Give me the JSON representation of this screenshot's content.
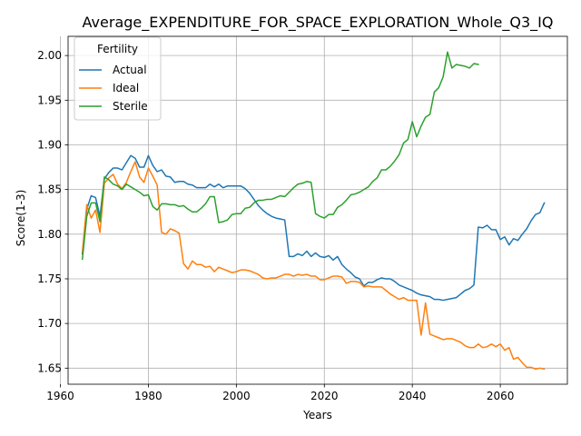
{
  "chart_data": {
    "type": "line",
    "title": "Average_EXPENDITURE_FOR_SPACE_EXPLORATION_Whole_Q3_IQ",
    "xlabel": "Years",
    "ylabel": "Score(1-3)",
    "xlim": [
      1961.75,
      2075.25
    ],
    "ylim": [
      1.632,
      2.0215
    ],
    "xticks": [
      1960,
      1980,
      2000,
      2020,
      2040,
      2060
    ],
    "yticks": [
      1.65,
      1.7,
      1.75,
      1.8,
      1.85,
      1.9,
      1.95,
      2.0
    ],
    "ytick_labels": [
      "1.65",
      "1.70",
      "1.75",
      "1.80",
      "1.85",
      "1.90",
      "1.95",
      "2.00"
    ],
    "grid": true,
    "legend": {
      "title": "Fertility",
      "location": "upper-left"
    },
    "series": [
      {
        "name": "Actual",
        "color": "#1f77b4",
        "points": [
          [
            1965,
            1.778
          ],
          [
            1966,
            1.828
          ],
          [
            1967,
            1.843
          ],
          [
            1968,
            1.841
          ],
          [
            1969,
            1.82
          ],
          [
            1970,
            1.862
          ],
          [
            1971,
            1.869
          ],
          [
            1972,
            1.874
          ],
          [
            1973,
            1.874
          ],
          [
            1974,
            1.872
          ],
          [
            1975,
            1.88
          ],
          [
            1976,
            1.888
          ],
          [
            1977,
            1.885
          ],
          [
            1978,
            1.875
          ],
          [
            1979,
            1.875
          ],
          [
            1980,
            1.888
          ],
          [
            1981,
            1.877
          ],
          [
            1982,
            1.87
          ],
          [
            1983,
            1.872
          ],
          [
            1984,
            1.865
          ],
          [
            1985,
            1.864
          ],
          [
            1986,
            1.858
          ],
          [
            1987,
            1.859
          ],
          [
            1988,
            1.859
          ],
          [
            1989,
            1.856
          ],
          [
            1990,
            1.855
          ],
          [
            1991,
            1.852
          ],
          [
            1992,
            1.852
          ],
          [
            1993,
            1.852
          ],
          [
            1994,
            1.856
          ],
          [
            1995,
            1.853
          ],
          [
            1996,
            1.856
          ],
          [
            1997,
            1.852
          ],
          [
            1998,
            1.854
          ],
          [
            1999,
            1.854
          ],
          [
            2000,
            1.854
          ],
          [
            2001,
            1.854
          ],
          [
            2002,
            1.851
          ],
          [
            2003,
            1.846
          ],
          [
            2004,
            1.839
          ],
          [
            2005,
            1.832
          ],
          [
            2006,
            1.827
          ],
          [
            2007,
            1.823
          ],
          [
            2008,
            1.82
          ],
          [
            2009,
            1.818
          ],
          [
            2010,
            1.817
          ],
          [
            2011,
            1.816
          ],
          [
            2012,
            1.775
          ],
          [
            2013,
            1.775
          ],
          [
            2014,
            1.778
          ],
          [
            2015,
            1.776
          ],
          [
            2016,
            1.781
          ],
          [
            2017,
            1.775
          ],
          [
            2018,
            1.779
          ],
          [
            2019,
            1.775
          ],
          [
            2020,
            1.774
          ],
          [
            2021,
            1.776
          ],
          [
            2022,
            1.771
          ],
          [
            2023,
            1.775
          ],
          [
            2024,
            1.766
          ],
          [
            2025,
            1.761
          ],
          [
            2026,
            1.757
          ],
          [
            2027,
            1.752
          ],
          [
            2028,
            1.75
          ],
          [
            2029,
            1.742
          ],
          [
            2030,
            1.746
          ],
          [
            2031,
            1.746
          ],
          [
            2032,
            1.749
          ],
          [
            2033,
            1.751
          ],
          [
            2034,
            1.75
          ],
          [
            2035,
            1.75
          ],
          [
            2036,
            1.747
          ],
          [
            2037,
            1.743
          ],
          [
            2038,
            1.741
          ],
          [
            2039,
            1.739
          ],
          [
            2040,
            1.737
          ],
          [
            2041,
            1.734
          ],
          [
            2042,
            1.732
          ],
          [
            2043,
            1.731
          ],
          [
            2044,
            1.73
          ],
          [
            2045,
            1.727
          ],
          [
            2046,
            1.727
          ],
          [
            2047,
            1.726
          ],
          [
            2048,
            1.727
          ],
          [
            2049,
            1.728
          ],
          [
            2050,
            1.729
          ],
          [
            2051,
            1.733
          ],
          [
            2052,
            1.737
          ],
          [
            2053,
            1.739
          ],
          [
            2054,
            1.743
          ],
          [
            2055,
            1.808
          ],
          [
            2056,
            1.807
          ],
          [
            2057,
            1.81
          ],
          [
            2058,
            1.805
          ],
          [
            2059,
            1.805
          ],
          [
            2060,
            1.794
          ],
          [
            2061,
            1.797
          ],
          [
            2062,
            1.788
          ],
          [
            2063,
            1.795
          ],
          [
            2064,
            1.793
          ],
          [
            2065,
            1.8
          ],
          [
            2066,
            1.806
          ],
          [
            2067,
            1.815
          ],
          [
            2068,
            1.822
          ],
          [
            2069,
            1.824
          ],
          [
            2070,
            1.835
          ]
        ]
      },
      {
        "name": "Ideal",
        "color": "#ff7f0e",
        "points": [
          [
            1965,
            1.78
          ],
          [
            1966,
            1.833
          ],
          [
            1967,
            1.818
          ],
          [
            1968,
            1.827
          ],
          [
            1969,
            1.802
          ],
          [
            1970,
            1.857
          ],
          [
            1971,
            1.863
          ],
          [
            1972,
            1.867
          ],
          [
            1973,
            1.856
          ],
          [
            1974,
            1.851
          ],
          [
            1975,
            1.858
          ],
          [
            1976,
            1.87
          ],
          [
            1977,
            1.881
          ],
          [
            1978,
            1.864
          ],
          [
            1979,
            1.858
          ],
          [
            1980,
            1.874
          ],
          [
            1981,
            1.865
          ],
          [
            1982,
            1.855
          ],
          [
            1983,
            1.802
          ],
          [
            1984,
            1.8
          ],
          [
            1985,
            1.806
          ],
          [
            1986,
            1.804
          ],
          [
            1987,
            1.801
          ],
          [
            1988,
            1.767
          ],
          [
            1989,
            1.761
          ],
          [
            1990,
            1.77
          ],
          [
            1991,
            1.766
          ],
          [
            1992,
            1.766
          ],
          [
            1993,
            1.763
          ],
          [
            1994,
            1.764
          ],
          [
            1995,
            1.758
          ],
          [
            1996,
            1.763
          ],
          [
            1997,
            1.761
          ],
          [
            1998,
            1.759
          ],
          [
            1999,
            1.757
          ],
          [
            2000,
            1.758
          ],
          [
            2001,
            1.76
          ],
          [
            2002,
            1.76
          ],
          [
            2003,
            1.759
          ],
          [
            2004,
            1.757
          ],
          [
            2005,
            1.755
          ],
          [
            2006,
            1.751
          ],
          [
            2007,
            1.75
          ],
          [
            2008,
            1.751
          ],
          [
            2009,
            1.751
          ],
          [
            2010,
            1.753
          ],
          [
            2011,
            1.755
          ],
          [
            2012,
            1.755
          ],
          [
            2013,
            1.753
          ],
          [
            2014,
            1.755
          ],
          [
            2015,
            1.754
          ],
          [
            2016,
            1.755
          ],
          [
            2017,
            1.753
          ],
          [
            2018,
            1.753
          ],
          [
            2019,
            1.749
          ],
          [
            2020,
            1.749
          ],
          [
            2021,
            1.751
          ],
          [
            2022,
            1.753
          ],
          [
            2023,
            1.753
          ],
          [
            2024,
            1.752
          ],
          [
            2025,
            1.745
          ],
          [
            2026,
            1.747
          ],
          [
            2027,
            1.747
          ],
          [
            2028,
            1.746
          ],
          [
            2029,
            1.741
          ],
          [
            2030,
            1.742
          ],
          [
            2031,
            1.741
          ],
          [
            2032,
            1.741
          ],
          [
            2033,
            1.741
          ],
          [
            2034,
            1.737
          ],
          [
            2035,
            1.733
          ],
          [
            2036,
            1.73
          ],
          [
            2037,
            1.727
          ],
          [
            2038,
            1.729
          ],
          [
            2039,
            1.726
          ],
          [
            2040,
            1.726
          ],
          [
            2041,
            1.726
          ],
          [
            2042,
            1.687
          ],
          [
            2043,
            1.723
          ],
          [
            2044,
            1.688
          ],
          [
            2045,
            1.686
          ],
          [
            2046,
            1.684
          ],
          [
            2047,
            1.682
          ],
          [
            2048,
            1.683
          ],
          [
            2049,
            1.683
          ],
          [
            2050,
            1.681
          ],
          [
            2051,
            1.679
          ],
          [
            2052,
            1.675
          ],
          [
            2053,
            1.673
          ],
          [
            2054,
            1.673
          ],
          [
            2055,
            1.677
          ],
          [
            2056,
            1.673
          ],
          [
            2057,
            1.674
          ],
          [
            2058,
            1.677
          ],
          [
            2059,
            1.674
          ],
          [
            2060,
            1.677
          ],
          [
            2061,
            1.67
          ],
          [
            2062,
            1.673
          ],
          [
            2063,
            1.66
          ],
          [
            2064,
            1.662
          ],
          [
            2065,
            1.656
          ],
          [
            2066,
            1.651
          ],
          [
            2067,
            1.651
          ],
          [
            2068,
            1.649
          ],
          [
            2069,
            1.65
          ],
          [
            2070,
            1.649
          ]
        ]
      },
      {
        "name": "Sterile",
        "color": "#2ca02c",
        "points": [
          [
            1965,
            1.772
          ],
          [
            1966,
            1.82
          ],
          [
            1967,
            1.835
          ],
          [
            1968,
            1.835
          ],
          [
            1969,
            1.814
          ],
          [
            1970,
            1.864
          ],
          [
            1971,
            1.861
          ],
          [
            1972,
            1.856
          ],
          [
            1973,
            1.854
          ],
          [
            1974,
            1.85
          ],
          [
            1975,
            1.856
          ],
          [
            1976,
            1.853
          ],
          [
            1977,
            1.85
          ],
          [
            1978,
            1.847
          ],
          [
            1979,
            1.843
          ],
          [
            1980,
            1.844
          ],
          [
            1981,
            1.831
          ],
          [
            1982,
            1.827
          ],
          [
            1983,
            1.834
          ],
          [
            1984,
            1.834
          ],
          [
            1985,
            1.833
          ],
          [
            1986,
            1.833
          ],
          [
            1987,
            1.831
          ],
          [
            1988,
            1.832
          ],
          [
            1989,
            1.828
          ],
          [
            1990,
            1.825
          ],
          [
            1991,
            1.825
          ],
          [
            1992,
            1.829
          ],
          [
            1993,
            1.834
          ],
          [
            1994,
            1.842
          ],
          [
            1995,
            1.842
          ],
          [
            1996,
            1.813
          ],
          [
            1997,
            1.814
          ],
          [
            1998,
            1.816
          ],
          [
            1999,
            1.822
          ],
          [
            2000,
            1.823
          ],
          [
            2001,
            1.823
          ],
          [
            2002,
            1.829
          ],
          [
            2003,
            1.83
          ],
          [
            2004,
            1.835
          ],
          [
            2005,
            1.838
          ],
          [
            2006,
            1.838
          ],
          [
            2007,
            1.839
          ],
          [
            2008,
            1.839
          ],
          [
            2009,
            1.841
          ],
          [
            2010,
            1.843
          ],
          [
            2011,
            1.842
          ],
          [
            2012,
            1.847
          ],
          [
            2013,
            1.852
          ],
          [
            2014,
            1.856
          ],
          [
            2015,
            1.857
          ],
          [
            2016,
            1.859
          ],
          [
            2017,
            1.858
          ],
          [
            2018,
            1.823
          ],
          [
            2019,
            1.82
          ],
          [
            2020,
            1.818
          ],
          [
            2021,
            1.822
          ],
          [
            2022,
            1.822
          ],
          [
            2023,
            1.83
          ],
          [
            2024,
            1.833
          ],
          [
            2025,
            1.838
          ],
          [
            2026,
            1.844
          ],
          [
            2027,
            1.845
          ],
          [
            2028,
            1.847
          ],
          [
            2029,
            1.85
          ],
          [
            2030,
            1.853
          ],
          [
            2031,
            1.859
          ],
          [
            2032,
            1.863
          ],
          [
            2033,
            1.872
          ],
          [
            2034,
            1.872
          ],
          [
            2035,
            1.876
          ],
          [
            2036,
            1.882
          ],
          [
            2037,
            1.889
          ],
          [
            2038,
            1.902
          ],
          [
            2039,
            1.906
          ],
          [
            2040,
            1.926
          ],
          [
            2041,
            1.909
          ],
          [
            2042,
            1.921
          ],
          [
            2043,
            1.931
          ],
          [
            2044,
            1.934
          ],
          [
            2045,
            1.959
          ],
          [
            2046,
            1.964
          ],
          [
            2047,
            1.976
          ],
          [
            2048,
            2.004
          ],
          [
            2049,
            1.986
          ],
          [
            2050,
            1.99
          ],
          [
            2051,
            1.989
          ],
          [
            2052,
            1.988
          ],
          [
            2053,
            1.986
          ],
          [
            2054,
            1.991
          ],
          [
            2055,
            1.99
          ]
        ]
      }
    ]
  }
}
